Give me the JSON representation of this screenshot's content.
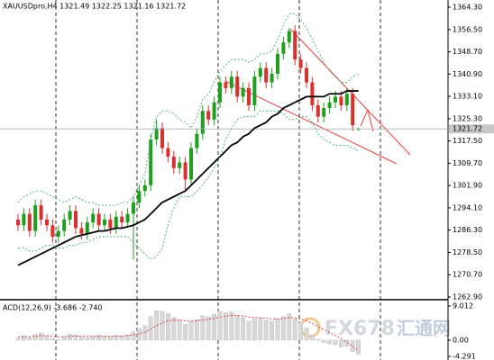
{
  "chart_data": [
    {
      "type": "candlestick",
      "title": "XAUUSDpro,H4 1321.49 1322.25 1321.16 1321.72",
      "categories": [
        null,
        null,
        null,
        null,
        null,
        null,
        null,
        null,
        null,
        null,
        null,
        null,
        null,
        null,
        null,
        null,
        null,
        null,
        null,
        null,
        null,
        null,
        null,
        null,
        null,
        null,
        null,
        null,
        null,
        null,
        null,
        null,
        null,
        null,
        null,
        null,
        null,
        null,
        null,
        null,
        null,
        null,
        null,
        null,
        null,
        null,
        null,
        null,
        null,
        null,
        null,
        null,
        null,
        null,
        null,
        null,
        null,
        null,
        null,
        null
      ],
      "open": [
        1290,
        1288,
        1292,
        1286,
        1295,
        1290,
        1288,
        1284,
        1286,
        1290,
        1293,
        1287,
        1285,
        1289,
        1292,
        1288,
        1290,
        1287,
        1291,
        1289,
        1292,
        1296,
        1300,
        1302,
        1318,
        1322,
        1315,
        1312,
        1308,
        1310,
        1304,
        1315,
        1320,
        1328,
        1325,
        1331,
        1338,
        1336,
        1340,
        1333,
        1336,
        1330,
        1340,
        1343,
        1338,
        1341,
        1348,
        1352,
        1356,
        1346,
        1343,
        1338,
        1330,
        1326,
        1329,
        1331,
        1333,
        1330,
        1334,
        1321.49
      ],
      "high": [
        1292,
        1294,
        1294,
        1297,
        1297,
        1292,
        1290,
        1288,
        1292,
        1295,
        1295,
        1289,
        1291,
        1294,
        1294,
        1292,
        1292,
        1293,
        1293,
        1294,
        1298,
        1302,
        1304,
        1320,
        1325,
        1324,
        1317,
        1314,
        1312,
        1312,
        1317,
        1322,
        1330,
        1330,
        1333,
        1340,
        1340,
        1342,
        1342,
        1338,
        1338,
        1342,
        1345,
        1345,
        1343,
        1350,
        1354,
        1357,
        1358,
        1348,
        1345,
        1340,
        1332,
        1331,
        1333,
        1335,
        1335,
        1336,
        1336,
        1322.25
      ],
      "low": [
        1286,
        1286,
        1284,
        1284,
        1288,
        1286,
        1282,
        1282,
        1284,
        1288,
        1285,
        1283,
        1283,
        1287,
        1286,
        1286,
        1285,
        1285,
        1287,
        1287,
        1276,
        1294,
        1298,
        1300,
        1316,
        1313,
        1310,
        1306,
        1306,
        1300,
        1302,
        1313,
        1318,
        1323,
        1323,
        1329,
        1334,
        1334,
        1331,
        1331,
        1328,
        1328,
        1338,
        1336,
        1336,
        1339,
        1346,
        1350,
        1344,
        1341,
        1336,
        1328,
        1324,
        1324,
        1327,
        1329,
        1328,
        1328,
        1321,
        1321.16
      ],
      "close": [
        1288,
        1292,
        1286,
        1295,
        1290,
        1288,
        1284,
        1286,
        1290,
        1293,
        1287,
        1285,
        1289,
        1292,
        1288,
        1290,
        1287,
        1291,
        1289,
        1292,
        1296,
        1300,
        1302,
        1318,
        1322,
        1315,
        1312,
        1308,
        1310,
        1304,
        1315,
        1320,
        1328,
        1325,
        1331,
        1338,
        1336,
        1340,
        1333,
        1336,
        1330,
        1340,
        1343,
        1338,
        1341,
        1348,
        1352,
        1356,
        1346,
        1343,
        1338,
        1330,
        1326,
        1329,
        1331,
        1333,
        1330,
        1334,
        1323,
        1321.72
      ],
      "up_color": "#1f9e1f",
      "down_color": "#d93030",
      "lines": [
        {
          "color": "#000000",
          "style": "solid",
          "values": [
            1274,
            1275,
            1276,
            1277,
            1278,
            1279,
            1280,
            1281,
            1282,
            1283,
            1284,
            1284.5,
            1285,
            1285.5,
            1286,
            1286,
            1286.5,
            1287,
            1287,
            1287.5,
            1288,
            1289,
            1290,
            1292,
            1294,
            1296,
            1297,
            1298,
            1299,
            1300,
            1302,
            1304,
            1306,
            1308,
            1310,
            1312,
            1314,
            1316,
            1317,
            1319,
            1320,
            1322,
            1323,
            1324,
            1326,
            1327,
            1329,
            1330,
            1331,
            1332,
            1333,
            1333,
            1333,
            1333,
            1334,
            1334,
            1334,
            1335,
            1335,
            1335
          ]
        },
        {
          "color": "#3cb371",
          "style": "dotted",
          "values": [
            1296,
            1298,
            1299,
            1300,
            1300,
            1299,
            1298,
            1297,
            1296,
            1297,
            1298,
            1297,
            1296,
            1296,
            1295,
            1295,
            1295,
            1295,
            1296,
            1296,
            1298,
            1302,
            1306,
            1318,
            1326,
            1328,
            1328,
            1327,
            1325,
            1324,
            1322,
            1326,
            1332,
            1334,
            1338,
            1342,
            1344,
            1346,
            1346,
            1346,
            1345,
            1346,
            1348,
            1348,
            1349,
            1353,
            1358,
            1362,
            1362,
            1360,
            1357,
            1353,
            1349,
            1345,
            1342,
            1340,
            1338,
            1338,
            1340,
            1341
          ]
        },
        {
          "color": "#3cb371",
          "style": "dotted",
          "values": [
            1280,
            1280,
            1279,
            1279,
            1280,
            1281,
            1281,
            1280,
            1280,
            1281,
            1281,
            1282,
            1282,
            1283,
            1284,
            1284,
            1284,
            1284,
            1284,
            1284,
            1282,
            1280,
            1278,
            1276,
            1277,
            1280,
            1288,
            1294,
            1298,
            1298,
            1298,
            1300,
            1302,
            1305,
            1308,
            1312,
            1318,
            1322,
            1325,
            1326,
            1326,
            1326,
            1328,
            1328,
            1328,
            1328,
            1327,
            1325,
            1325,
            1326,
            1326,
            1324,
            1320,
            1318,
            1317,
            1316,
            1316,
            1316,
            1315,
            1314
          ]
        }
      ],
      "last_price_line": true,
      "ylim": [
        1262.27,
        1366.82
      ],
      "yticks": [
        {
          "value": 1262.9,
          "label": "1262.90"
        },
        {
          "value": 1270.7,
          "label": "1270.70"
        },
        {
          "value": 1278.5,
          "label": "1278.50"
        },
        {
          "value": 1286.3,
          "label": "1286.30"
        },
        {
          "value": 1294.1,
          "label": "1294.10"
        },
        {
          "value": 1301.9,
          "label": "1301.90"
        },
        {
          "value": 1309.7,
          "label": "1309.70"
        },
        {
          "value": 1317.5,
          "label": "1317.50"
        },
        {
          "value": 1325.3,
          "label": "1325.30"
        },
        {
          "value": 1333.1,
          "label": "1333.10"
        },
        {
          "value": 1340.9,
          "label": "1340.90"
        },
        {
          "value": 1348.7,
          "label": "1348.70"
        },
        {
          "value": 1356.5,
          "label": "1356.50"
        },
        {
          "value": 1364.3,
          "label": "1364.30"
        }
      ],
      "grid": false
    },
    {
      "type": "bar",
      "title": "ACD(12,26,9) -3.686 -2.740",
      "values": [
        0.5,
        1.2,
        0.8,
        1.5,
        1.8,
        1.2,
        0.4,
        0.2,
        0.9,
        1.6,
        1.4,
        0.8,
        0.6,
        1.0,
        1.3,
        1.1,
        0.9,
        1.2,
        1.1,
        1.4,
        2.2,
        3.1,
        3.8,
        6.2,
        7.8,
        7.6,
        7.0,
        6.0,
        5.4,
        4.2,
        4.8,
        5.4,
        6.4,
        6.2,
        6.8,
        7.6,
        7.2,
        7.4,
        6.4,
        6.0,
        5.0,
        5.6,
        5.8,
        5.2,
        5.0,
        5.6,
        6.2,
        7.0,
        5.6,
        4.6,
        3.2,
        1.4,
        0.2,
        -0.6,
        -1.0,
        -1.2,
        -1.8,
        -1.6,
        -3.0,
        -3.686
      ],
      "color": "#d9d9d9",
      "lines": [
        {
          "color": "#e03030",
          "style": "dotted",
          "values": [
            0.8,
            0.9,
            0.9,
            1.0,
            1.2,
            1.2,
            1.0,
            0.9,
            0.9,
            1.0,
            1.1,
            1.0,
            1.0,
            1.0,
            1.0,
            1.0,
            1.0,
            1.1,
            1.1,
            1.2,
            1.4,
            1.7,
            2.1,
            2.9,
            3.8,
            4.6,
            5.1,
            5.3,
            5.3,
            5.1,
            5.0,
            5.1,
            5.3,
            5.5,
            5.7,
            6.1,
            6.3,
            6.5,
            6.5,
            6.4,
            6.1,
            6.0,
            5.9,
            5.8,
            5.6,
            5.6,
            5.7,
            6.0,
            5.9,
            5.6,
            5.1,
            4.4,
            3.6,
            2.8,
            2.0,
            1.2,
            0.4,
            -0.6,
            -1.7,
            -2.74
          ]
        }
      ],
      "ylim": [
        -5.24,
        10.2
      ],
      "yticks": [
        9.012,
        {
          "value": 0,
          "label": "0.00"
        },
        -4.291
      ],
      "grid": false
    }
  ],
  "watermark": {
    "brand": "FX678",
    "name": "汇通网"
  }
}
